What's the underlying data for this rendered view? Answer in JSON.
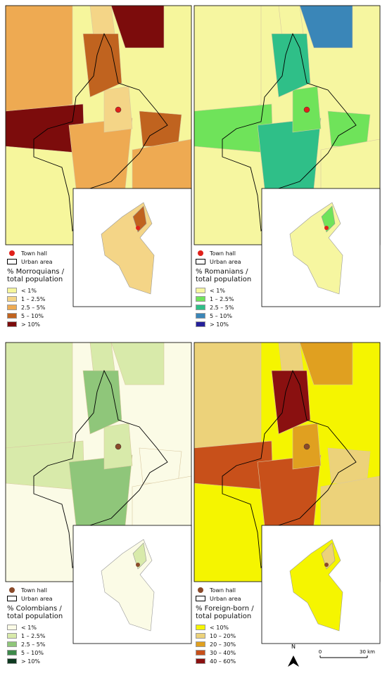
{
  "panels": [
    {
      "town_hall": "Town hall",
      "urban_area": "Urban area",
      "legend_title": "% Morroquians / total population",
      "town_hall_color": "#e0201a",
      "classes": [
        {
          "label": "< 1%",
          "color": "#f6f69c"
        },
        {
          "label": "1 – 2.5%",
          "color": "#f4d587"
        },
        {
          "label": "2.5 – 5%",
          "color": "#eeaa52"
        },
        {
          "label": "5 – 10%",
          "color": "#c0631f"
        },
        {
          "label": "> 10%",
          "color": "#7c0c0c"
        }
      ]
    },
    {
      "town_hall": "Town hall",
      "urban_area": "Urban area",
      "legend_title": "% Romanians / total population",
      "town_hall_color": "#e0201a",
      "classes": [
        {
          "label": "< 1%",
          "color": "#f6f6a0"
        },
        {
          "label": "1 – 2.5%",
          "color": "#6fe35a"
        },
        {
          "label": "2.5 – 5%",
          "color": "#2fbf88"
        },
        {
          "label": "5 – 10%",
          "color": "#3a86b8"
        },
        {
          "label": "> 10%",
          "color": "#25209a"
        }
      ]
    },
    {
      "town_hall": "Town hall",
      "urban_area": "Urban area",
      "legend_title": "% Colombians / total population",
      "town_hall_color": "#8a4a2a",
      "classes": [
        {
          "label": "< 1%",
          "color": "#fbfbe6"
        },
        {
          "label": "1 – 2.5%",
          "color": "#d8eaaa"
        },
        {
          "label": "2.5 – 5%",
          "color": "#8fc67a"
        },
        {
          "label": "5 – 10%",
          "color": "#3e8a4a"
        },
        {
          "label": "> 10%",
          "color": "#0e3a20"
        }
      ]
    },
    {
      "town_hall": "Town hall",
      "urban_area": "Urban area",
      "legend_title": "% Foreign-born / total population",
      "town_hall_color": "#8a4a2a",
      "classes": [
        {
          "label": "< 10%",
          "color": "#f5f500"
        },
        {
          "label": "10 – 20%",
          "color": "#ecd27a"
        },
        {
          "label": "20 – 30%",
          "color": "#e0a020"
        },
        {
          "label": "30 – 40%",
          "color": "#c8501a"
        },
        {
          "label": "40 – 60%",
          "color": "#8a1010"
        }
      ]
    }
  ],
  "north": "N",
  "scale": {
    "start": "0",
    "end": "30 km"
  }
}
